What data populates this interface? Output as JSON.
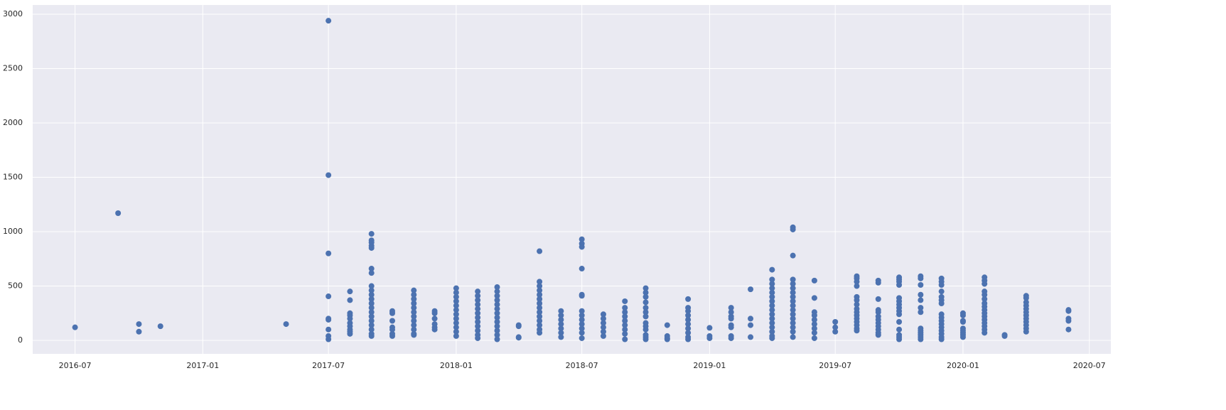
{
  "chart_data": {
    "type": "scatter",
    "color": "#4c72b0",
    "grid": true,
    "background": "#eaeaf2",
    "xlim": [
      "2016-05",
      "2020-08"
    ],
    "xticks": [
      "2016-07",
      "2017-01",
      "2017-07",
      "2018-01",
      "2018-07",
      "2019-01",
      "2019-07",
      "2020-01",
      "2020-07"
    ],
    "ylim": [
      -124,
      3085
    ],
    "yticks": [
      0,
      500,
      1000,
      1500,
      2000,
      2500,
      3000
    ],
    "x": [
      "2016-07",
      "2016-09",
      "2016-10",
      "2016-10",
      "2016-11",
      "2017-05",
      "2017-07",
      "2017-07",
      "2017-07",
      "2017-07",
      "2017-07",
      "2017-07",
      "2017-07",
      "2017-07",
      "2017-07",
      "2017-08",
      "2017-08",
      "2017-08",
      "2017-08",
      "2017-08",
      "2017-08",
      "2017-08",
      "2017-08",
      "2017-08",
      "2017-08",
      "2017-09",
      "2017-09",
      "2017-09",
      "2017-09",
      "2017-09",
      "2017-09",
      "2017-09",
      "2017-09",
      "2017-09",
      "2017-09",
      "2017-09",
      "2017-09",
      "2017-09",
      "2017-09",
      "2017-09",
      "2017-09",
      "2017-09",
      "2017-09",
      "2017-09",
      "2017-09",
      "2017-10",
      "2017-10",
      "2017-10",
      "2017-10",
      "2017-10",
      "2017-10",
      "2017-10",
      "2017-11",
      "2017-11",
      "2017-11",
      "2017-11",
      "2017-11",
      "2017-11",
      "2017-11",
      "2017-11",
      "2017-11",
      "2017-11",
      "2017-11",
      "2017-11",
      "2017-12",
      "2017-12",
      "2017-12",
      "2017-12",
      "2017-12",
      "2017-12",
      "2018-01",
      "2018-01",
      "2018-01",
      "2018-01",
      "2018-01",
      "2018-01",
      "2018-01",
      "2018-01",
      "2018-01",
      "2018-01",
      "2018-01",
      "2018-01",
      "2018-02",
      "2018-02",
      "2018-02",
      "2018-02",
      "2018-02",
      "2018-02",
      "2018-02",
      "2018-02",
      "2018-02",
      "2018-02",
      "2018-02",
      "2018-02",
      "2018-03",
      "2018-03",
      "2018-03",
      "2018-03",
      "2018-03",
      "2018-03",
      "2018-03",
      "2018-03",
      "2018-03",
      "2018-03",
      "2018-03",
      "2018-03",
      "2018-03",
      "2018-04",
      "2018-04",
      "2018-04",
      "2018-04",
      "2018-05",
      "2018-05",
      "2018-05",
      "2018-05",
      "2018-05",
      "2018-05",
      "2018-05",
      "2018-05",
      "2018-05",
      "2018-05",
      "2018-05",
      "2018-05",
      "2018-05",
      "2018-05",
      "2018-06",
      "2018-06",
      "2018-06",
      "2018-06",
      "2018-06",
      "2018-06",
      "2018-06",
      "2018-07",
      "2018-07",
      "2018-07",
      "2018-07",
      "2018-07",
      "2018-07",
      "2018-07",
      "2018-07",
      "2018-07",
      "2018-07",
      "2018-07",
      "2018-07",
      "2018-07",
      "2018-08",
      "2018-08",
      "2018-08",
      "2018-08",
      "2018-08",
      "2018-08",
      "2018-09",
      "2018-09",
      "2018-09",
      "2018-09",
      "2018-09",
      "2018-09",
      "2018-09",
      "2018-09",
      "2018-09",
      "2018-10",
      "2018-10",
      "2018-10",
      "2018-10",
      "2018-10",
      "2018-10",
      "2018-10",
      "2018-10",
      "2018-10",
      "2018-10",
      "2018-10",
      "2018-10",
      "2018-10",
      "2018-11",
      "2018-11",
      "2018-11",
      "2018-11",
      "2018-12",
      "2018-12",
      "2018-12",
      "2018-12",
      "2018-12",
      "2018-12",
      "2018-12",
      "2018-12",
      "2018-12",
      "2018-12",
      "2019-01",
      "2019-01",
      "2019-01",
      "2019-02",
      "2019-02",
      "2019-02",
      "2019-02",
      "2019-02",
      "2019-02",
      "2019-02",
      "2019-02",
      "2019-03",
      "2019-03",
      "2019-03",
      "2019-03",
      "2019-04",
      "2019-04",
      "2019-04",
      "2019-04",
      "2019-04",
      "2019-04",
      "2019-04",
      "2019-04",
      "2019-04",
      "2019-04",
      "2019-04",
      "2019-04",
      "2019-04",
      "2019-04",
      "2019-04",
      "2019-04",
      "2019-05",
      "2019-05",
      "2019-05",
      "2019-05",
      "2019-05",
      "2019-05",
      "2019-05",
      "2019-05",
      "2019-05",
      "2019-05",
      "2019-05",
      "2019-05",
      "2019-05",
      "2019-05",
      "2019-05",
      "2019-05",
      "2019-05",
      "2019-06",
      "2019-06",
      "2019-06",
      "2019-06",
      "2019-06",
      "2019-06",
      "2019-06",
      "2019-06",
      "2019-06",
      "2019-07",
      "2019-07",
      "2019-07",
      "2019-08",
      "2019-08",
      "2019-08",
      "2019-08",
      "2019-08",
      "2019-08",
      "2019-08",
      "2019-08",
      "2019-08",
      "2019-08",
      "2019-08",
      "2019-08",
      "2019-08",
      "2019-08",
      "2019-08",
      "2019-09",
      "2019-09",
      "2019-09",
      "2019-09",
      "2019-09",
      "2019-09",
      "2019-09",
      "2019-09",
      "2019-09",
      "2019-09",
      "2019-09",
      "2019-09",
      "2019-10",
      "2019-10",
      "2019-10",
      "2019-10",
      "2019-10",
      "2019-10",
      "2019-10",
      "2019-10",
      "2019-10",
      "2019-10",
      "2019-10",
      "2019-10",
      "2019-10",
      "2019-10",
      "2019-10",
      "2019-11",
      "2019-11",
      "2019-11",
      "2019-11",
      "2019-11",
      "2019-11",
      "2019-11",
      "2019-11",
      "2019-11",
      "2019-11",
      "2019-11",
      "2019-11",
      "2019-11",
      "2019-12",
      "2019-12",
      "2019-12",
      "2019-12",
      "2019-12",
      "2019-12",
      "2019-12",
      "2019-12",
      "2019-12",
      "2019-12",
      "2019-12",
      "2019-12",
      "2019-12",
      "2019-12",
      "2019-12",
      "2019-12",
      "2020-01",
      "2020-01",
      "2020-01",
      "2020-01",
      "2020-01",
      "2020-01",
      "2020-01",
      "2020-01",
      "2020-01",
      "2020-02",
      "2020-02",
      "2020-02",
      "2020-02",
      "2020-02",
      "2020-02",
      "2020-02",
      "2020-02",
      "2020-02",
      "2020-02",
      "2020-02",
      "2020-02",
      "2020-02",
      "2020-02",
      "2020-02",
      "2020-02",
      "2020-03",
      "2020-03",
      "2020-04",
      "2020-04",
      "2020-04",
      "2020-04",
      "2020-04",
      "2020-04",
      "2020-04",
      "2020-04",
      "2020-04",
      "2020-04",
      "2020-04",
      "2020-04",
      "2020-06",
      "2020-06",
      "2020-06",
      "2020-06",
      "2020-06"
    ],
    "values": [
      120,
      1170,
      150,
      80,
      130,
      150,
      2940,
      1520,
      800,
      405,
      200,
      190,
      100,
      40,
      10,
      450,
      370,
      250,
      230,
      200,
      160,
      130,
      100,
      80,
      60,
      980,
      920,
      900,
      870,
      850,
      660,
      620,
      500,
      460,
      420,
      380,
      340,
      300,
      260,
      220,
      180,
      140,
      100,
      60,
      40,
      270,
      250,
      180,
      120,
      100,
      60,
      40,
      460,
      420,
      380,
      340,
      300,
      260,
      220,
      180,
      140,
      100,
      60,
      50,
      270,
      250,
      200,
      150,
      120,
      100,
      480,
      440,
      400,
      360,
      320,
      280,
      240,
      200,
      160,
      120,
      80,
      40,
      450,
      410,
      370,
      330,
      290,
      250,
      210,
      170,
      130,
      90,
      50,
      20,
      490,
      450,
      410,
      370,
      330,
      290,
      250,
      210,
      170,
      130,
      90,
      50,
      10,
      140,
      130,
      30,
      25,
      820,
      540,
      500,
      460,
      420,
      380,
      340,
      300,
      260,
      220,
      180,
      140,
      100,
      70,
      270,
      230,
      190,
      150,
      110,
      70,
      30,
      930,
      890,
      860,
      660,
      420,
      410,
      270,
      230,
      190,
      150,
      110,
      70,
      20,
      240,
      200,
      160,
      120,
      80,
      40,
      360,
      300,
      260,
      220,
      180,
      140,
      100,
      60,
      10,
      480,
      440,
      400,
      350,
      300,
      260,
      220,
      160,
      130,
      100,
      50,
      30,
      10,
      140,
      40,
      20,
      10,
      380,
      300,
      270,
      230,
      190,
      150,
      110,
      70,
      30,
      10,
      115,
      40,
      20,
      300,
      260,
      220,
      200,
      140,
      120,
      40,
      20,
      470,
      200,
      140,
      30,
      650,
      560,
      520,
      480,
      440,
      400,
      360,
      320,
      280,
      240,
      200,
      160,
      120,
      80,
      40,
      20,
      1040,
      1020,
      780,
      560,
      520,
      480,
      440,
      400,
      360,
      320,
      280,
      240,
      200,
      160,
      120,
      80,
      30,
      550,
      390,
      260,
      230,
      190,
      150,
      110,
      70,
      20,
      170,
      120,
      80,
      590,
      570,
      540,
      500,
      400,
      370,
      330,
      290,
      260,
      230,
      200,
      170,
      140,
      110,
      90,
      550,
      530,
      380,
      280,
      260,
      220,
      190,
      160,
      130,
      100,
      70,
      50,
      580,
      560,
      540,
      510,
      390,
      360,
      330,
      300,
      270,
      240,
      170,
      100,
      50,
      30,
      10,
      590,
      570,
      510,
      420,
      370,
      300,
      260,
      110,
      90,
      70,
      50,
      30,
      10,
      570,
      540,
      510,
      450,
      400,
      370,
      340,
      240,
      210,
      180,
      150,
      120,
      90,
      60,
      30,
      10,
      250,
      230,
      180,
      170,
      110,
      90,
      70,
      50,
      30,
      580,
      550,
      520,
      450,
      420,
      380,
      340,
      310,
      280,
      250,
      220,
      190,
      160,
      130,
      100,
      70,
      50,
      40,
      410,
      390,
      350,
      320,
      290,
      260,
      230,
      200,
      170,
      140,
      110,
      80,
      280,
      270,
      200,
      180,
      100
    ]
  }
}
